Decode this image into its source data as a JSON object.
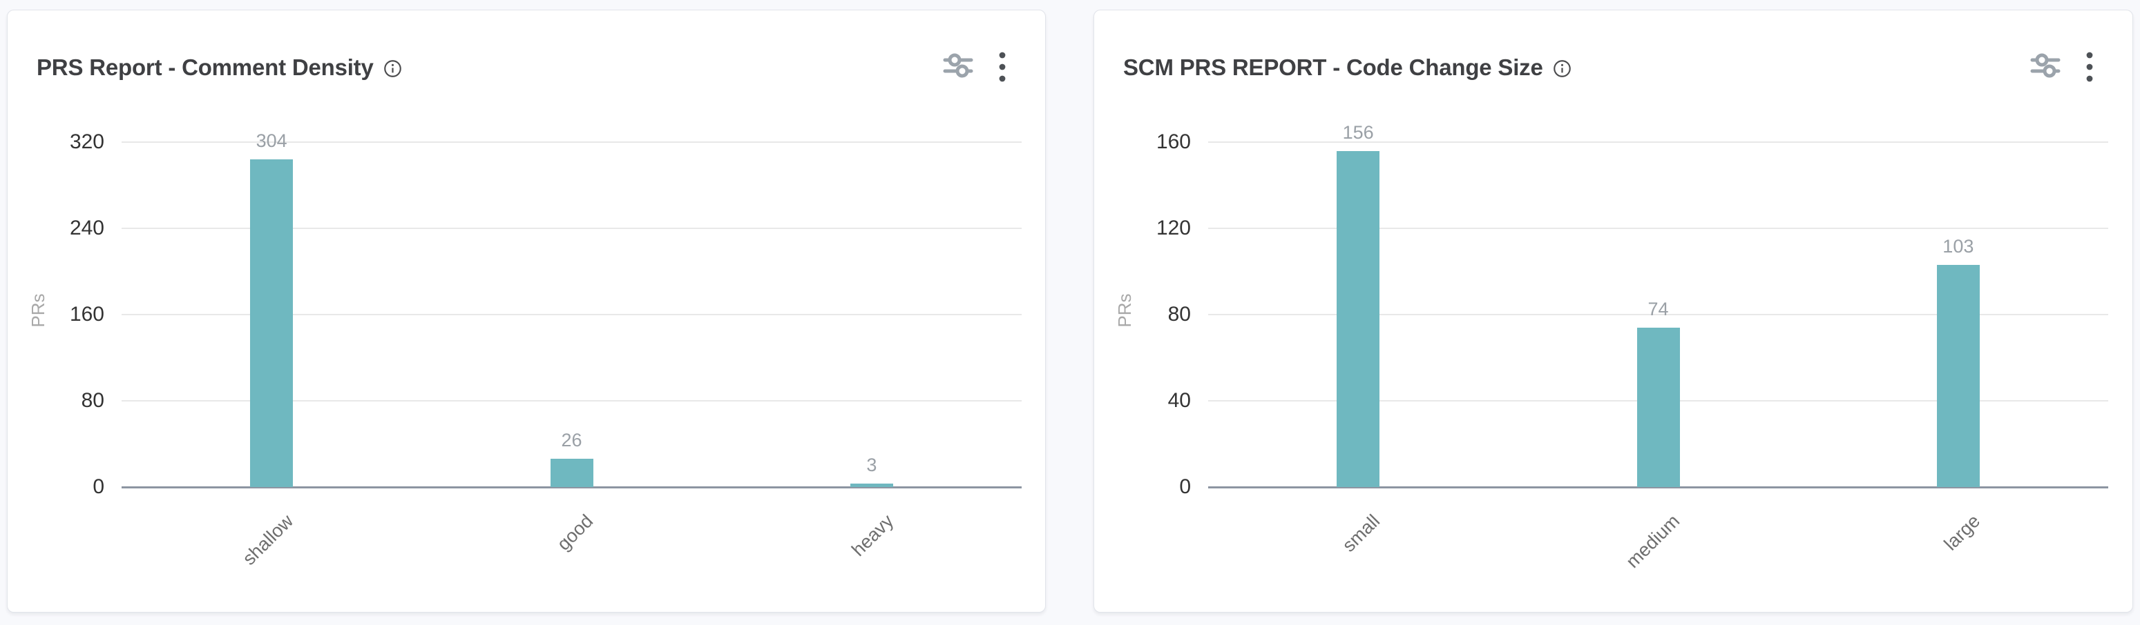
{
  "page": {
    "background": "#f8f9fc",
    "card_background": "#ffffff",
    "accent": "#6fb8c0"
  },
  "cards": [
    {
      "title": "PRS Report - Comment Density",
      "icons": {
        "info": "info-icon",
        "filter": "sliders-icon",
        "menu": "kebab-menu-icon"
      }
    },
    {
      "title": "SCM PRS REPORT - Code Change Size",
      "icons": {
        "info": "info-icon",
        "filter": "sliders-icon",
        "menu": "kebab-menu-icon"
      }
    }
  ],
  "chart_data": [
    {
      "type": "bar",
      "title": "PRS Report - Comment Density",
      "categories": [
        "shallow",
        "good",
        "heavy"
      ],
      "values": [
        304,
        26,
        3
      ],
      "xlabel": "",
      "ylabel": "PRs",
      "yticks": [
        0,
        80,
        160,
        240,
        320
      ],
      "ylim": [
        0,
        320
      ],
      "grid": true,
      "legend": false,
      "value_labels": [
        304,
        26,
        3
      ],
      "bar_color": "#6fb8c0",
      "grid_color": "#e8e8e8",
      "axis_color": "#8d95a2",
      "tick_label_color": "#333333",
      "value_label_color": "#9aa0a6",
      "category_label_color": "#6e6e6e"
    },
    {
      "type": "bar",
      "title": "SCM PRS REPORT - Code Change Size",
      "categories": [
        "small",
        "medium",
        "large"
      ],
      "values": [
        156,
        74,
        103
      ],
      "xlabel": "",
      "ylabel": "PRs",
      "yticks": [
        0,
        40,
        80,
        120,
        160
      ],
      "ylim": [
        0,
        160
      ],
      "grid": true,
      "legend": false,
      "value_labels": [
        156,
        74,
        103
      ],
      "bar_color": "#6fb8c0",
      "grid_color": "#e8e8e8",
      "axis_color": "#8d95a2",
      "tick_label_color": "#333333",
      "value_label_color": "#9aa0a6",
      "category_label_color": "#6e6e6e"
    }
  ]
}
